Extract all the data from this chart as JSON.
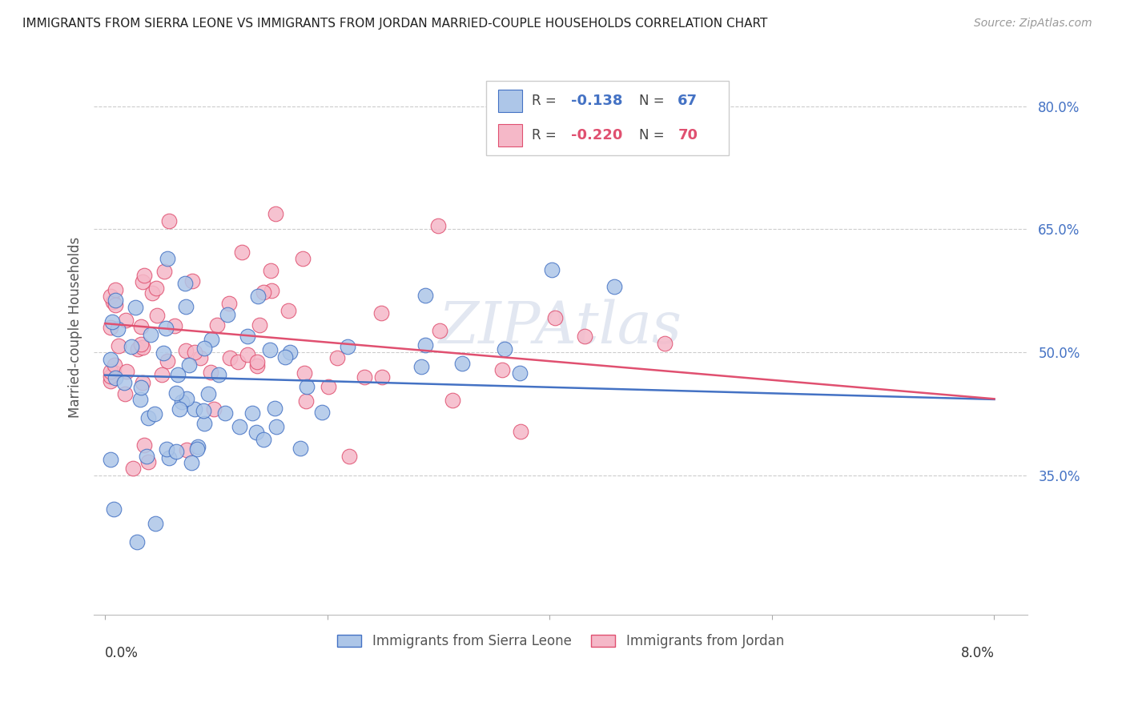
{
  "title": "IMMIGRANTS FROM SIERRA LEONE VS IMMIGRANTS FROM JORDAN MARRIED-COUPLE HOUSEHOLDS CORRELATION CHART",
  "source": "Source: ZipAtlas.com",
  "ylabel": "Married-couple Households",
  "legend_label1": "Immigrants from Sierra Leone",
  "legend_label2": "Immigrants from Jordan",
  "R1": "-0.138",
  "N1": "67",
  "R2": "-0.220",
  "N2": "70",
  "color_blue": "#adc6e8",
  "color_pink": "#f5b8c8",
  "line_blue": "#4472c4",
  "line_pink": "#e05070",
  "ytick_vals": [
    0.35,
    0.5,
    0.65,
    0.8
  ],
  "ytick_labels": [
    "35.0%",
    "50.0%",
    "65.0%",
    "80.0%"
  ],
  "xlim": [
    -0.001,
    0.083
  ],
  "ylim": [
    0.18,
    0.88
  ],
  "background_color": "#ffffff",
  "grid_color": "#cccccc"
}
